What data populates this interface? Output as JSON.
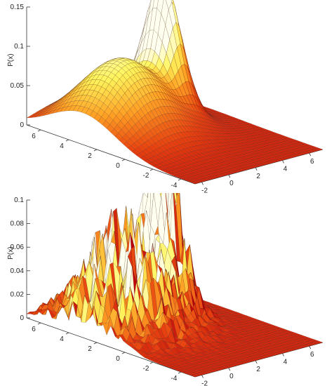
{
  "chart_data": [
    {
      "type": "surface",
      "ylabel": "P(x)",
      "zlim": [
        0,
        0.15
      ],
      "z_ticks": [
        "0",
        "0.05",
        "0.1",
        "0.15"
      ],
      "x_ticks": [
        "-2",
        "0",
        "2",
        "4",
        "6"
      ],
      "y_ticks": [
        "-4",
        "-2",
        "0",
        "2",
        "4",
        "6"
      ],
      "x_range": [
        -2.5,
        7
      ],
      "y_range": [
        -5,
        7
      ],
      "grid": false,
      "series": [
        {
          "components": [
            {
              "cx": 0.5,
              "cy": 3.0,
              "amp": 0.095,
              "sx": 2.3,
              "sy": 2.3
            },
            {
              "cx": 4.0,
              "cy": 3.5,
              "amp": 0.15,
              "sx": 0.65,
              "sy": 1.1
            }
          ]
        }
      ],
      "colormap": [
        "#b8000d",
        "#e8410f",
        "#ffa225",
        "#fff55c",
        "#fffff0"
      ]
    },
    {
      "type": "surface",
      "ylabel": "P(x)",
      "zlim": [
        0,
        0.1
      ],
      "z_ticks": [
        "0",
        "0.02",
        "0.04",
        "0.06",
        "0.08",
        "0.1"
      ],
      "x_ticks": [
        "-2",
        "0",
        "2",
        "4",
        "6"
      ],
      "y_ticks": [
        "-4",
        "-2",
        "0",
        "2",
        "4",
        "6"
      ],
      "x_range": [
        -2.5,
        7
      ],
      "y_range": [
        -5,
        7
      ],
      "grid": false,
      "series": [
        {
          "components": [
            {
              "cx": 0.5,
              "cy": 3.0,
              "amp": 0.06,
              "sx": 2.0,
              "sy": 2.0
            },
            {
              "cx": 4.0,
              "cy": 3.5,
              "amp": 0.09,
              "sx": 0.65,
              "sy": 1.1
            }
          ],
          "noise": 0.6
        }
      ],
      "colormap": [
        "#b8000d",
        "#e8410f",
        "#ffa225",
        "#fff55c",
        "#fffff0"
      ]
    }
  ]
}
